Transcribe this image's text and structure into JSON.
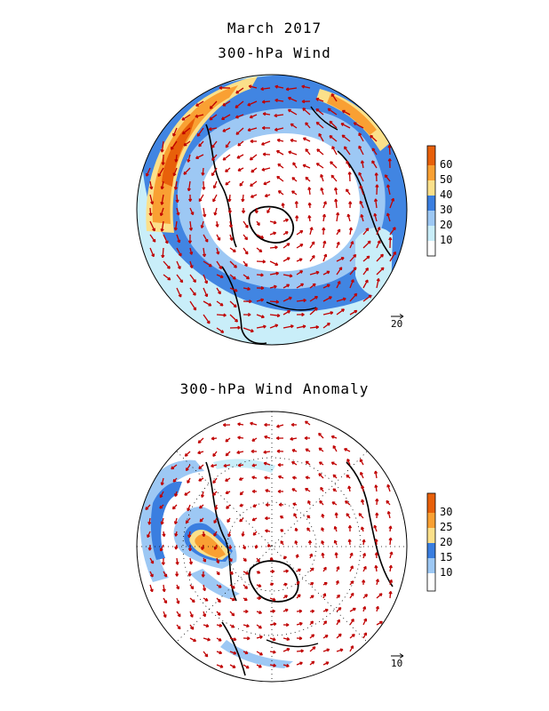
{
  "titles": {
    "month": "March 2017",
    "wind": "300-hPa Wind",
    "anomaly": "300-hPa Wind Anomaly"
  },
  "maps": [
    {
      "name": "wind",
      "colorbar": {
        "labels": [
          "60",
          "50",
          "40",
          "30",
          "20",
          "10"
        ],
        "colors": [
          "#e8600a",
          "#f9a033",
          "#fbe08a",
          "#3a7ee0",
          "#9dc8f4",
          "#c9eef9",
          "#ffffff"
        ]
      },
      "reference_vector_label": "20"
    },
    {
      "name": "anomaly",
      "colorbar": {
        "labels": [
          "30",
          "25",
          "20",
          "15",
          "10"
        ],
        "colors": [
          "#e8600a",
          "#f9a033",
          "#fbe08a",
          "#3a7ee0",
          "#9dc8f4",
          "#ffffff"
        ]
      },
      "reference_vector_label": "10"
    }
  ],
  "colors": {
    "arrow": "#c00000",
    "coast": "#000000",
    "grid": "#000000"
  }
}
